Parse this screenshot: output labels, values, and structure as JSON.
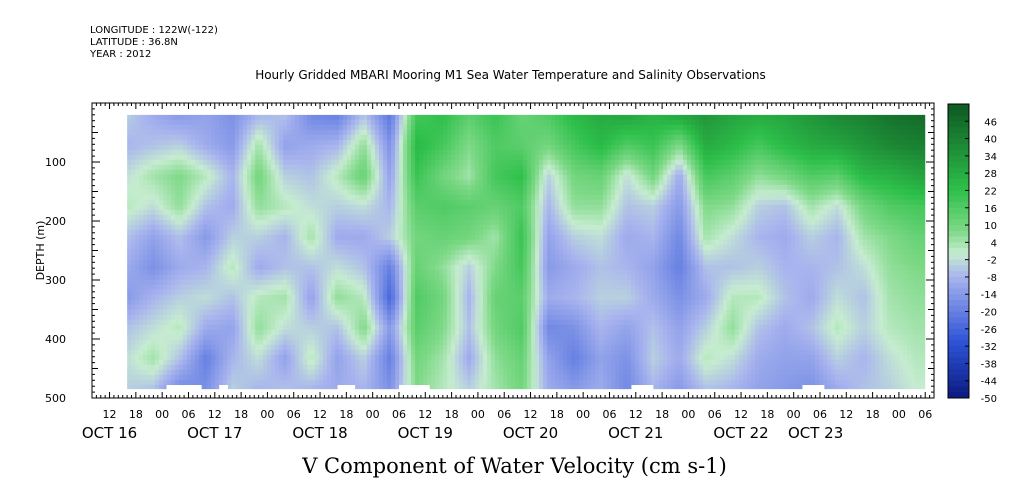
{
  "header": {
    "longitude": "LONGITUDE : 122W(-122)",
    "latitude": "LATITUDE : 36.8N",
    "year": "YEAR : 2012"
  },
  "chart_data": {
    "type": "heatmap",
    "title": "Hourly Gridded MBARI Mooring M1 Sea Water Temperature and Salinity Observations",
    "xlabel": "V Component of Water Velocity (cm s-1)",
    "ylabel": "DEPTH (m)",
    "ylim": [
      0,
      500
    ],
    "y_inverted": true,
    "y_ticks": [
      100,
      200,
      300,
      400,
      500
    ],
    "x_range_hours": [
      -10,
      182
    ],
    "x_hour_ticks": [
      "12",
      "18",
      "00",
      "06",
      "12",
      "18",
      "00",
      "06",
      "12",
      "18",
      "00",
      "06",
      "12",
      "18",
      "00",
      "06",
      "12",
      "18",
      "00",
      "06",
      "12",
      "18",
      "00",
      "06",
      "12",
      "18",
      "00",
      "06",
      "12",
      "18",
      "00",
      "06"
    ],
    "x_hour_tick_offsets": [
      -6,
      0,
      6,
      12,
      18,
      24,
      30,
      36,
      42,
      48,
      54,
      60,
      66,
      72,
      78,
      84,
      90,
      96,
      102,
      108,
      114,
      120,
      126,
      132,
      138,
      144,
      150,
      156,
      162,
      168,
      174,
      180
    ],
    "day_labels": [
      {
        "label": "OCT 16",
        "hour": -6
      },
      {
        "label": "OCT 17",
        "hour": 18
      },
      {
        "label": "OCT 18",
        "hour": 42
      },
      {
        "label": "OCT 19",
        "hour": 66
      },
      {
        "label": "OCT 20",
        "hour": 90
      },
      {
        "label": "OCT 21",
        "hour": 114
      },
      {
        "label": "OCT 22",
        "hour": 138
      },
      {
        "label": "OCT 23",
        "hour": 155
      }
    ],
    "data_extent": {
      "hour_start": -2,
      "hour_end": 180,
      "depth_start": 20,
      "depth_end": 485
    },
    "colorbar": {
      "levels": [
        46,
        40,
        34,
        28,
        22,
        16,
        10,
        4,
        -2,
        -8,
        -14,
        -20,
        -26,
        -32,
        -38,
        -44,
        -50
      ],
      "range": [
        -50,
        52
      ],
      "colors": {
        "v_neg_strong": "#0a1a80",
        "v_neg_mid": "#2f55d8",
        "v_neg_weak": "#a8b4ee",
        "v_zero": "#c6ecd0",
        "v_pos_weak": "#7ed987",
        "v_pos_mid": "#2ec04a",
        "v_pos_strong": "#0f5e25"
      }
    },
    "columns": [
      {
        "hour": -2,
        "v": [
          -4,
          -8,
          -2,
          2,
          -6,
          -10,
          -14,
          -6,
          -2,
          -4
        ]
      },
      {
        "hour": 4,
        "v": [
          -10,
          -6,
          4,
          -2,
          -12,
          -16,
          -8,
          -2,
          4,
          -6
        ]
      },
      {
        "hour": 10,
        "v": [
          -14,
          -4,
          8,
          6,
          -6,
          -10,
          -4,
          2,
          -6,
          -18
        ]
      },
      {
        "hour": 16,
        "v": [
          -12,
          -10,
          2,
          -6,
          -14,
          -8,
          -2,
          -10,
          -20,
          -16
        ]
      },
      {
        "hour": 22,
        "v": [
          -16,
          -14,
          -8,
          -10,
          -4,
          2,
          -6,
          -12,
          -8,
          -4
        ]
      },
      {
        "hour": 28,
        "v": [
          -8,
          4,
          10,
          6,
          -4,
          -10,
          2,
          6,
          -2,
          -8
        ]
      },
      {
        "hour": 34,
        "v": [
          -6,
          -12,
          -4,
          2,
          -8,
          -6,
          4,
          -2,
          -12,
          -6
        ]
      },
      {
        "hour": 40,
        "v": [
          -18,
          -10,
          -6,
          -2,
          4,
          -6,
          -12,
          -4,
          2,
          -8
        ]
      },
      {
        "hour": 46,
        "v": [
          -20,
          -8,
          2,
          -4,
          -10,
          -2,
          6,
          -6,
          -12,
          -10
        ]
      },
      {
        "hour": 52,
        "v": [
          -6,
          6,
          12,
          -2,
          -10,
          -6,
          2,
          8,
          -4,
          -8
        ]
      },
      {
        "hour": 58,
        "v": [
          -22,
          -16,
          -12,
          -8,
          -4,
          -20,
          -26,
          -14,
          -20,
          -16
        ]
      },
      {
        "hour": 64,
        "v": [
          18,
          24,
          20,
          14,
          10,
          12,
          16,
          14,
          10,
          8
        ]
      },
      {
        "hour": 70,
        "v": [
          22,
          18,
          10,
          16,
          12,
          6,
          10,
          8,
          4,
          2
        ]
      },
      {
        "hour": 76,
        "v": [
          14,
          8,
          4,
          14,
          10,
          -4,
          -8,
          -6,
          -10,
          -4
        ]
      },
      {
        "hour": 82,
        "v": [
          20,
          16,
          18,
          12,
          4,
          8,
          12,
          10,
          6,
          4
        ]
      },
      {
        "hour": 88,
        "v": [
          12,
          14,
          22,
          16,
          20,
          18,
          14,
          16,
          12,
          10
        ]
      },
      {
        "hour": 94,
        "v": [
          16,
          10,
          -4,
          -8,
          -12,
          -14,
          -10,
          -18,
          -12,
          -10
        ]
      },
      {
        "hour": 100,
        "v": [
          24,
          18,
          10,
          6,
          -4,
          -10,
          -8,
          -16,
          -20,
          -14
        ]
      },
      {
        "hour": 106,
        "v": [
          28,
          24,
          12,
          6,
          -2,
          -6,
          -4,
          -8,
          -12,
          -10
        ]
      },
      {
        "hour": 112,
        "v": [
          30,
          16,
          -2,
          -6,
          -10,
          -8,
          -4,
          -12,
          -16,
          -18
        ]
      },
      {
        "hour": 118,
        "v": [
          26,
          20,
          10,
          -4,
          -8,
          -12,
          -10,
          -6,
          -4,
          -8
        ]
      },
      {
        "hour": 124,
        "v": [
          30,
          8,
          -10,
          -14,
          -18,
          -20,
          -16,
          -12,
          -10,
          -14
        ]
      },
      {
        "hour": 130,
        "v": [
          34,
          28,
          18,
          8,
          4,
          -6,
          -10,
          -4,
          2,
          -6
        ]
      },
      {
        "hour": 136,
        "v": [
          30,
          24,
          14,
          6,
          -2,
          -6,
          2,
          6,
          -2,
          -8
        ]
      },
      {
        "hour": 142,
        "v": [
          28,
          18,
          6,
          -4,
          -8,
          -4,
          2,
          -6,
          -10,
          -12
        ]
      },
      {
        "hour": 148,
        "v": [
          30,
          24,
          10,
          -6,
          -10,
          -8,
          -6,
          -10,
          -12,
          -14
        ]
      },
      {
        "hour": 154,
        "v": [
          34,
          28,
          16,
          4,
          -4,
          -8,
          -10,
          -6,
          -12,
          -16
        ]
      },
      {
        "hour": 160,
        "v": [
          38,
          30,
          14,
          -2,
          -8,
          -6,
          -2,
          2,
          -4,
          -10
        ]
      },
      {
        "hour": 166,
        "v": [
          40,
          34,
          24,
          10,
          4,
          -2,
          -6,
          -4,
          -8,
          -6
        ]
      },
      {
        "hour": 172,
        "v": [
          44,
          38,
          26,
          16,
          8,
          6,
          4,
          2,
          -2,
          -4
        ]
      },
      {
        "hour": 178,
        "v": [
          46,
          40,
          30,
          18,
          12,
          8,
          6,
          4,
          2,
          0
        ]
      }
    ],
    "gaps": [
      {
        "hour_start": 7,
        "hour_end": 15,
        "depth_start": 478,
        "depth_end": 485
      },
      {
        "hour_start": 19,
        "hour_end": 21,
        "depth_start": 478,
        "depth_end": 485
      },
      {
        "hour_start": 46,
        "hour_end": 50,
        "depth_start": 478,
        "depth_end": 485
      },
      {
        "hour_start": 60,
        "hour_end": 67,
        "depth_start": 478,
        "depth_end": 485
      },
      {
        "hour_start": 113,
        "hour_end": 118,
        "depth_start": 478,
        "depth_end": 485
      },
      {
        "hour_start": 152,
        "hour_end": 157,
        "depth_start": 478,
        "depth_end": 485
      }
    ]
  }
}
